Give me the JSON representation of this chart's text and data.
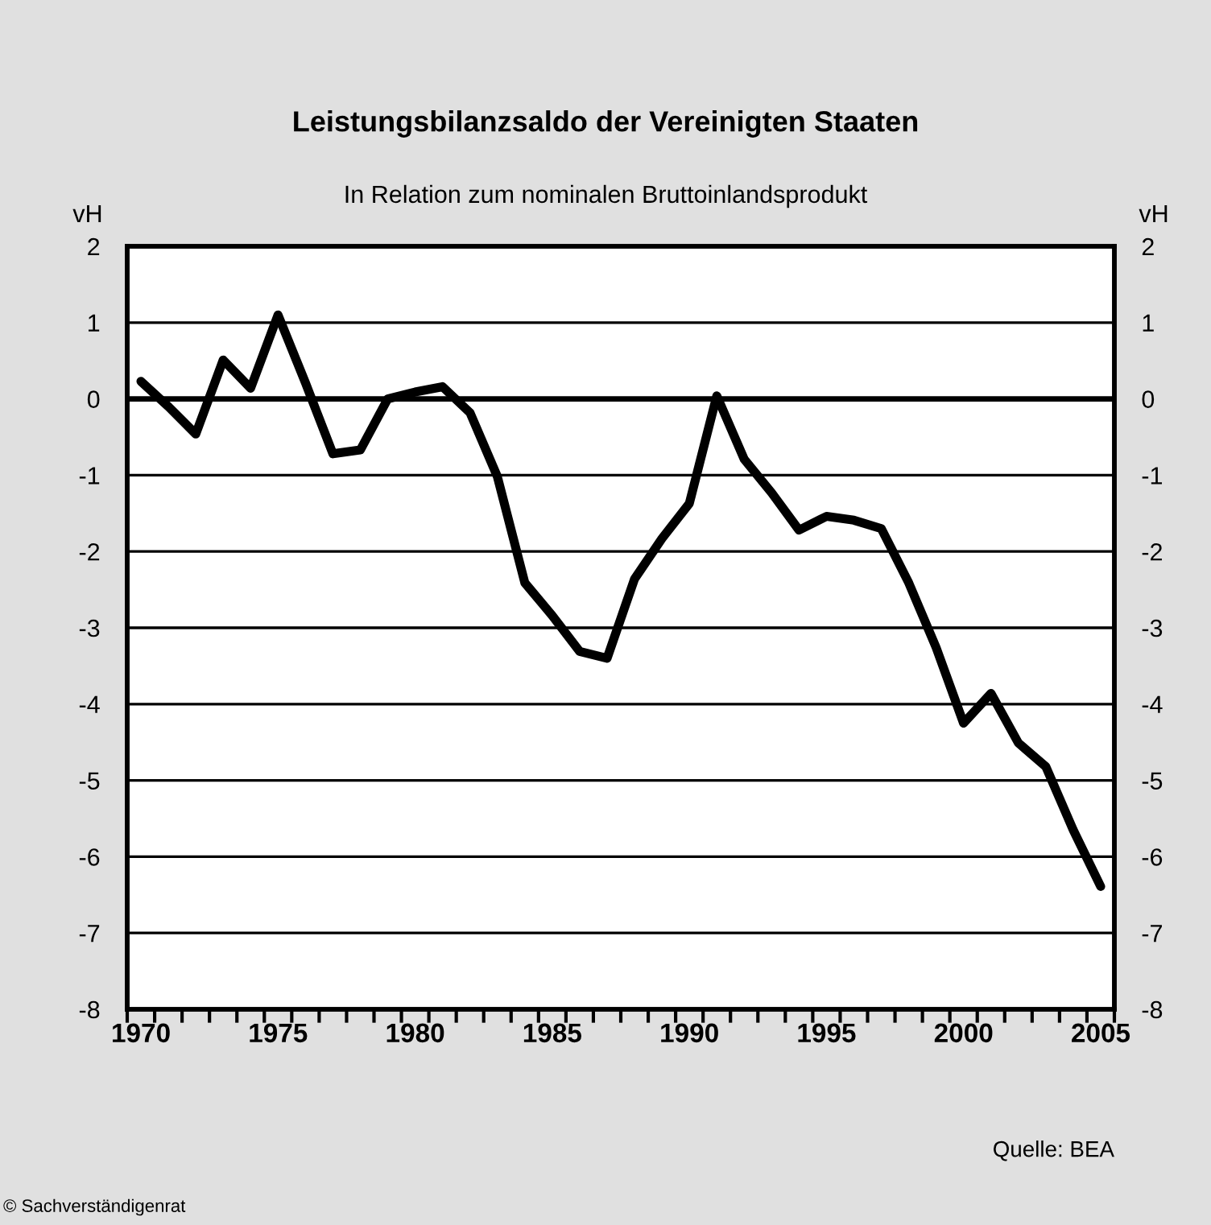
{
  "chart_data": {
    "type": "line",
    "title": "Leistungsbilanzsaldo der Vereinigten Staaten",
    "subtitle": "In Relation zum nominalen Bruttoinlandsprodukt",
    "ylabel": "vH",
    "y2label": "vH",
    "annotations": [
      "Quelle: BEA",
      "© Sachverständigenrat"
    ],
    "x": [
      1970,
      1971,
      1972,
      1973,
      1974,
      1975,
      1976,
      1977,
      1978,
      1979,
      1980,
      1981,
      1982,
      1983,
      1984,
      1985,
      1986,
      1987,
      1988,
      1989,
      1990,
      1991,
      1992,
      1993,
      1994,
      1995,
      1996,
      1997,
      1998,
      1999,
      2000,
      2001,
      2002,
      2003,
      2004,
      2005
    ],
    "series": [
      {
        "color": "#000000",
        "values": [
          0.23,
          -0.1,
          -0.46,
          0.51,
          0.14,
          1.1,
          0.21,
          -0.72,
          -0.67,
          0.0,
          0.09,
          0.16,
          -0.18,
          -1.02,
          -2.41,
          -2.84,
          -3.31,
          -3.4,
          -2.36,
          -1.83,
          -1.37,
          0.04,
          -0.79,
          -1.23,
          -1.72,
          -1.54,
          -1.59,
          -1.7,
          -2.41,
          -3.26,
          -4.25,
          -3.86,
          -4.51,
          -4.82,
          -5.65,
          -6.39
        ]
      }
    ],
    "xlim": [
      1969.5,
      2005.5
    ],
    "xticks": [
      {
        "value": 1969.5,
        "label": null
      },
      1970,
      {
        "value": 1970.5,
        "label": null
      },
      {
        "value": 1971.5,
        "label": null
      },
      {
        "value": 1972.5,
        "label": null
      },
      {
        "value": 1973.5,
        "label": null
      },
      {
        "value": 1974.5,
        "label": null
      },
      1975,
      {
        "value": 1975.5,
        "label": null
      },
      {
        "value": 1976.5,
        "label": null
      },
      {
        "value": 1977.5,
        "label": null
      },
      {
        "value": 1978.5,
        "label": null
      },
      {
        "value": 1979.5,
        "label": null
      },
      1980,
      {
        "value": 1980.5,
        "label": null
      },
      {
        "value": 1981.5,
        "label": null
      },
      {
        "value": 1982.5,
        "label": null
      },
      {
        "value": 1983.5,
        "label": null
      },
      {
        "value": 1984.5,
        "label": null
      },
      1985,
      {
        "value": 1985.5,
        "label": null
      },
      {
        "value": 1986.5,
        "label": null
      },
      {
        "value": 1987.5,
        "label": null
      },
      {
        "value": 1988.5,
        "label": null
      },
      {
        "value": 1989.5,
        "label": null
      },
      1990,
      {
        "value": 1990.5,
        "label": null
      },
      {
        "value": 1991.5,
        "label": null
      },
      {
        "value": 1992.5,
        "label": null
      },
      {
        "value": 1993.5,
        "label": null
      },
      {
        "value": 1994.5,
        "label": null
      },
      1995,
      {
        "value": 1995.5,
        "label": null
      },
      {
        "value": 1996.5,
        "label": null
      },
      {
        "value": 1997.5,
        "label": null
      },
      {
        "value": 1998.5,
        "label": null
      },
      {
        "value": 1999.5,
        "label": null
      },
      2000,
      {
        "value": 2000.5,
        "label": null
      },
      {
        "value": 2001.5,
        "label": null
      },
      {
        "value": 2002.5,
        "label": null
      },
      {
        "value": 2003.5,
        "label": null
      },
      {
        "value": 2004.5,
        "label": null
      },
      2005,
      {
        "value": 2005.5,
        "label": null
      }
    ],
    "ylim": [
      -8,
      2
    ],
    "yticks": [
      -8,
      -7,
      -6,
      -5,
      -4,
      -3,
      -2,
      -1,
      0,
      1,
      2
    ],
    "y2lim": [
      -8,
      2
    ],
    "y2ticks": [
      -8,
      -7,
      -6,
      -5,
      -4,
      -3,
      -2,
      -1,
      0,
      1,
      2
    ],
    "grid": "y",
    "ref_lines": [
      {
        "axis": "y",
        "value": 0
      }
    ],
    "line_style": "solid",
    "marker": "none",
    "legend": false
  }
}
